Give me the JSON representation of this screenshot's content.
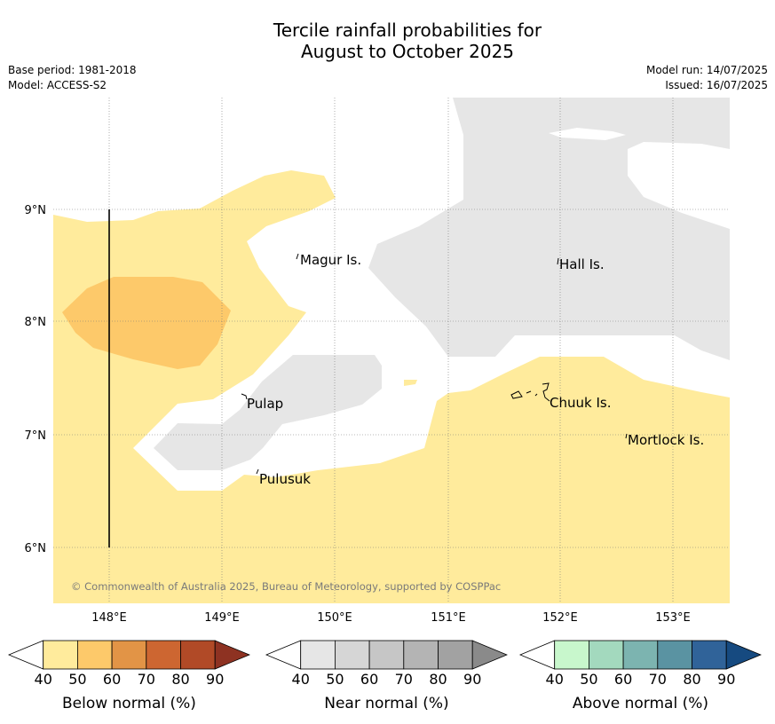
{
  "title": {
    "line1": "Tercile rainfall probabilities for",
    "line2": "August to October 2025"
  },
  "meta": {
    "base_period": "Base period: 1981-2018",
    "model": "Model: ACCESS-S2",
    "model_run": "Model run: 14/07/2025",
    "issued": "Issued: 16/07/2025"
  },
  "axes": {
    "lon_ticks": [
      "148°E",
      "149°E",
      "150°E",
      "151°E",
      "152°E",
      "153°E"
    ],
    "lat_ticks": [
      "9°N",
      "8°N",
      "7°N",
      "6°N"
    ]
  },
  "places": [
    {
      "name": "Magur Is."
    },
    {
      "name": "Hall Is."
    },
    {
      "name": "Pulap"
    },
    {
      "name": "Chuuk Is."
    },
    {
      "name": "Mortlock Is."
    },
    {
      "name": "Pulusuk"
    }
  ],
  "copyright": "© Commonwealth of Australia 2025, Bureau of Meteorology, supported by COSPPac",
  "colorbars": [
    {
      "label": "Below normal (%)",
      "ticks": [
        "40",
        "50",
        "60",
        "70",
        "80",
        "90"
      ],
      "colors": [
        "#ffffff",
        "#ffeb9c",
        "#fdc96a",
        "#e29446",
        "#cd6631",
        "#b14a27",
        "#8e3222"
      ]
    },
    {
      "label": "Near normal (%)",
      "ticks": [
        "40",
        "50",
        "60",
        "70",
        "80",
        "90"
      ],
      "colors": [
        "#ffffff",
        "#e6e6e6",
        "#d6d6d6",
        "#c6c6c6",
        "#b4b4b4",
        "#a2a2a2",
        "#8a8a8a"
      ]
    },
    {
      "label": "Above normal (%)",
      "ticks": [
        "40",
        "50",
        "60",
        "70",
        "80",
        "90"
      ],
      "colors": [
        "#ffffff",
        "#c8f7cc",
        "#a3d9be",
        "#7cb4b0",
        "#5a93a2",
        "#306399",
        "#164a80"
      ]
    }
  ],
  "legend_colors": {
    "below_40_50": "#ffeb9c",
    "below_50_60": "#fdc96a",
    "near_40_50": "#e6e6e6"
  }
}
